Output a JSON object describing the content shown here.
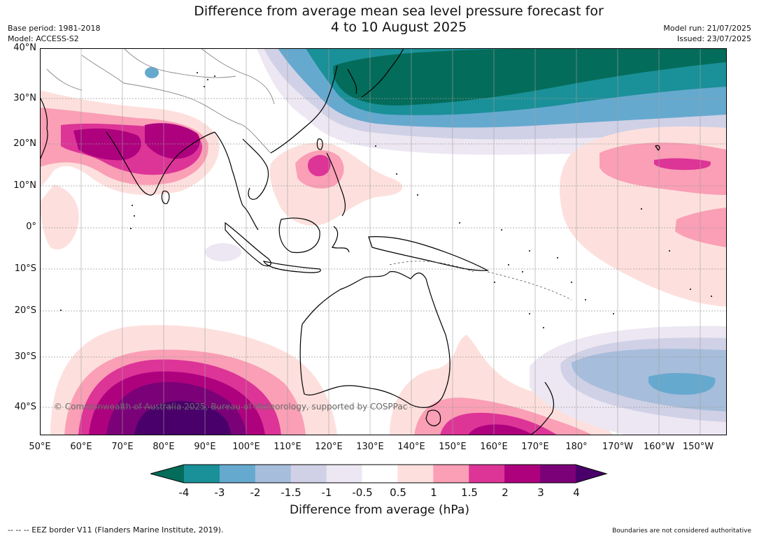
{
  "header": {
    "title_line1": "Difference from average mean sea level pressure forecast for",
    "title_line2": "4 to 10 August 2025",
    "base_period": "Base period: 1981-2018",
    "model": "Model: ACCESS-S2",
    "model_run": "Model run: 21/07/2025",
    "issued": "Issued: 23/07/2025"
  },
  "map": {
    "lat_labels": [
      "40°N",
      "30°N",
      "20°N",
      "10°N",
      "0°",
      "10°S",
      "20°S",
      "30°S",
      "40°S"
    ],
    "lon_labels": [
      "50°E",
      "60°E",
      "70°E",
      "80°E",
      "90°E",
      "100°E",
      "110°E",
      "120°E",
      "130°E",
      "140°E",
      "150°E",
      "160°E",
      "170°E",
      "180°",
      "170°W",
      "160°W",
      "150°W"
    ],
    "copyright": "© Commonwealth of Australia 2025, Bureau of Meteorology, supported by COSPPac"
  },
  "colorbar": {
    "ticks": [
      "-4",
      "-3",
      "-2",
      "-1.5",
      "-1",
      "-0.5",
      "0.5",
      "1",
      "1.5",
      "2",
      "3",
      "4"
    ],
    "colors": [
      "#1a9098",
      "#66a9cf",
      "#a6bddb",
      "#d0d1e6",
      "#ece7f2",
      "#ffffff",
      "#fde0dd",
      "#fa9fb5",
      "#dd3497",
      "#ae017e",
      "#7a0177"
    ],
    "low_color": "#046c5a",
    "high_color": "#49006a",
    "title": "Difference from average (hPa)"
  },
  "footer": {
    "eez": "--  --  -- EEZ border V11 (Flanders Marine Institute, 2019).",
    "disclaimer": "Boundaries are not considered authoritative"
  }
}
